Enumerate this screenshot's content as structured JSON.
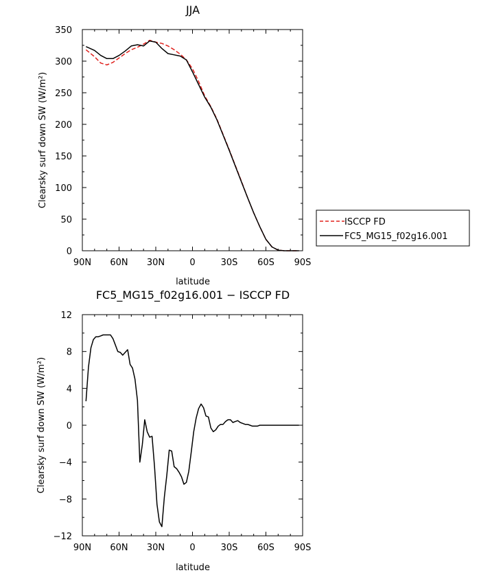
{
  "chart_data": [
    {
      "type": "line",
      "title": "JJA",
      "xlabel": "latitude",
      "ylabel": "Clearsky surf down SW (W/m²)",
      "xlim": [
        90,
        -90
      ],
      "ylim": [
        0,
        350
      ],
      "xticks": [
        90,
        60,
        30,
        0,
        -30,
        -60,
        -90
      ],
      "xticklabels": [
        "90N",
        "60N",
        "30N",
        "0",
        "30S",
        "60S",
        "90S"
      ],
      "yticks": [
        0,
        50,
        100,
        150,
        200,
        250,
        300,
        350
      ],
      "yticklabels": [
        "0",
        "50",
        "100",
        "150",
        "200",
        "250",
        "300",
        "350"
      ],
      "grid": false,
      "legend_position": "right",
      "series": [
        {
          "name": "ISCCP FD",
          "color": "#e0201c",
          "dash": "dashed",
          "x": [
            87,
            80,
            75,
            70,
            65,
            60,
            55,
            50,
            45,
            40,
            35,
            30,
            25,
            20,
            15,
            10,
            5,
            0,
            -5,
            -10,
            -15,
            -20,
            -25,
            -30,
            -35,
            -40,
            -45,
            -50,
            -55,
            -60,
            -65,
            -70,
            -75,
            -80,
            -85,
            -87
          ],
          "y": [
            318,
            307,
            297,
            294,
            298,
            305,
            312,
            318,
            322,
            327,
            333,
            330,
            328,
            324,
            318,
            311,
            302,
            288,
            268,
            245,
            228,
            208,
            184,
            160,
            135,
            110,
            84,
            60,
            38,
            18,
            6,
            1,
            0,
            0,
            0,
            0
          ]
        },
        {
          "name": "FC5_MG15_f02g16.001",
          "color": "#000000",
          "dash": "solid",
          "x": [
            87,
            80,
            75,
            70,
            65,
            60,
            55,
            50,
            45,
            40,
            35,
            30,
            25,
            20,
            15,
            10,
            5,
            0,
            -5,
            -10,
            -15,
            -20,
            -25,
            -30,
            -35,
            -40,
            -45,
            -50,
            -55,
            -60,
            -65,
            -70,
            -75,
            -80,
            -85,
            -87
          ],
          "y": [
            323,
            317,
            309,
            304,
            304,
            309,
            316,
            324,
            326,
            324,
            332,
            330,
            320,
            312,
            310,
            308,
            302,
            283,
            263,
            243,
            227,
            207,
            183,
            159,
            134,
            109,
            84,
            60,
            38,
            18,
            6,
            1,
            0,
            0,
            0,
            0
          ]
        }
      ]
    },
    {
      "type": "line",
      "title": "FC5_MG15_f02g16.001 − ISCCP FD",
      "xlabel": "latitude",
      "ylabel": "Clearsky surf down SW (W/m²)",
      "xlim": [
        90,
        -90
      ],
      "ylim": [
        -12,
        12
      ],
      "xticks": [
        90,
        60,
        30,
        0,
        -30,
        -60,
        -90
      ],
      "xticklabels": [
        "90N",
        "60N",
        "30N",
        "0",
        "30S",
        "60S",
        "90S"
      ],
      "yticks": [
        -12,
        -8,
        -4,
        0,
        4,
        8,
        12
      ],
      "yticklabels": [
        "−12",
        "−8",
        "−4",
        "0",
        "4",
        "8",
        "12"
      ],
      "grid": false,
      "series": [
        {
          "color": "#000000",
          "dash": "solid",
          "x": [
            87,
            85,
            83,
            81,
            79,
            77,
            75,
            73,
            71,
            69,
            67,
            65,
            63,
            61,
            59,
            57,
            55,
            53,
            51,
            49,
            47,
            45,
            43,
            41,
            39,
            37,
            35,
            33,
            31,
            29,
            27,
            25,
            23,
            21,
            19,
            17,
            15,
            13,
            11,
            9,
            7,
            5,
            3,
            1,
            -1,
            -3,
            -5,
            -7,
            -9,
            -11,
            -13,
            -15,
            -17,
            -19,
            -21,
            -23,
            -25,
            -27,
            -29,
            -31,
            -33,
            -35,
            -37,
            -39,
            -41,
            -43,
            -45,
            -47,
            -49,
            -51,
            -53,
            -55,
            -57,
            -59,
            -61,
            -63,
            -65,
            -67,
            -69,
            -71,
            -73,
            -75,
            -77,
            -79,
            -81,
            -83,
            -85,
            -87
          ],
          "y": [
            2.6,
            6.3,
            8.4,
            9.3,
            9.6,
            9.6,
            9.7,
            9.8,
            9.8,
            9.8,
            9.8,
            9.4,
            8.7,
            8.0,
            7.9,
            7.6,
            7.9,
            8.2,
            6.6,
            6.2,
            5.0,
            2.7,
            -4.0,
            -2.1,
            0.6,
            -0.7,
            -1.3,
            -1.2,
            -4.5,
            -8.6,
            -10.5,
            -11.0,
            -7.8,
            -5.4,
            -2.7,
            -2.8,
            -4.5,
            -4.7,
            -5.1,
            -5.6,
            -6.4,
            -6.2,
            -5.0,
            -2.9,
            -0.7,
            0.8,
            1.8,
            2.3,
            1.9,
            1.0,
            0.9,
            -0.3,
            -0.7,
            -0.5,
            -0.1,
            0.1,
            0.1,
            0.4,
            0.6,
            0.6,
            0.3,
            0.4,
            0.5,
            0.3,
            0.2,
            0.1,
            0.1,
            0.0,
            -0.1,
            -0.1,
            -0.1,
            0.0,
            0.0,
            0.0,
            0.0,
            0.0,
            0.0,
            0.0,
            0.0,
            0.0,
            0.0,
            0.0,
            0.0,
            0.0,
            0.0,
            0.0,
            0.0,
            0.0
          ]
        }
      ]
    }
  ]
}
